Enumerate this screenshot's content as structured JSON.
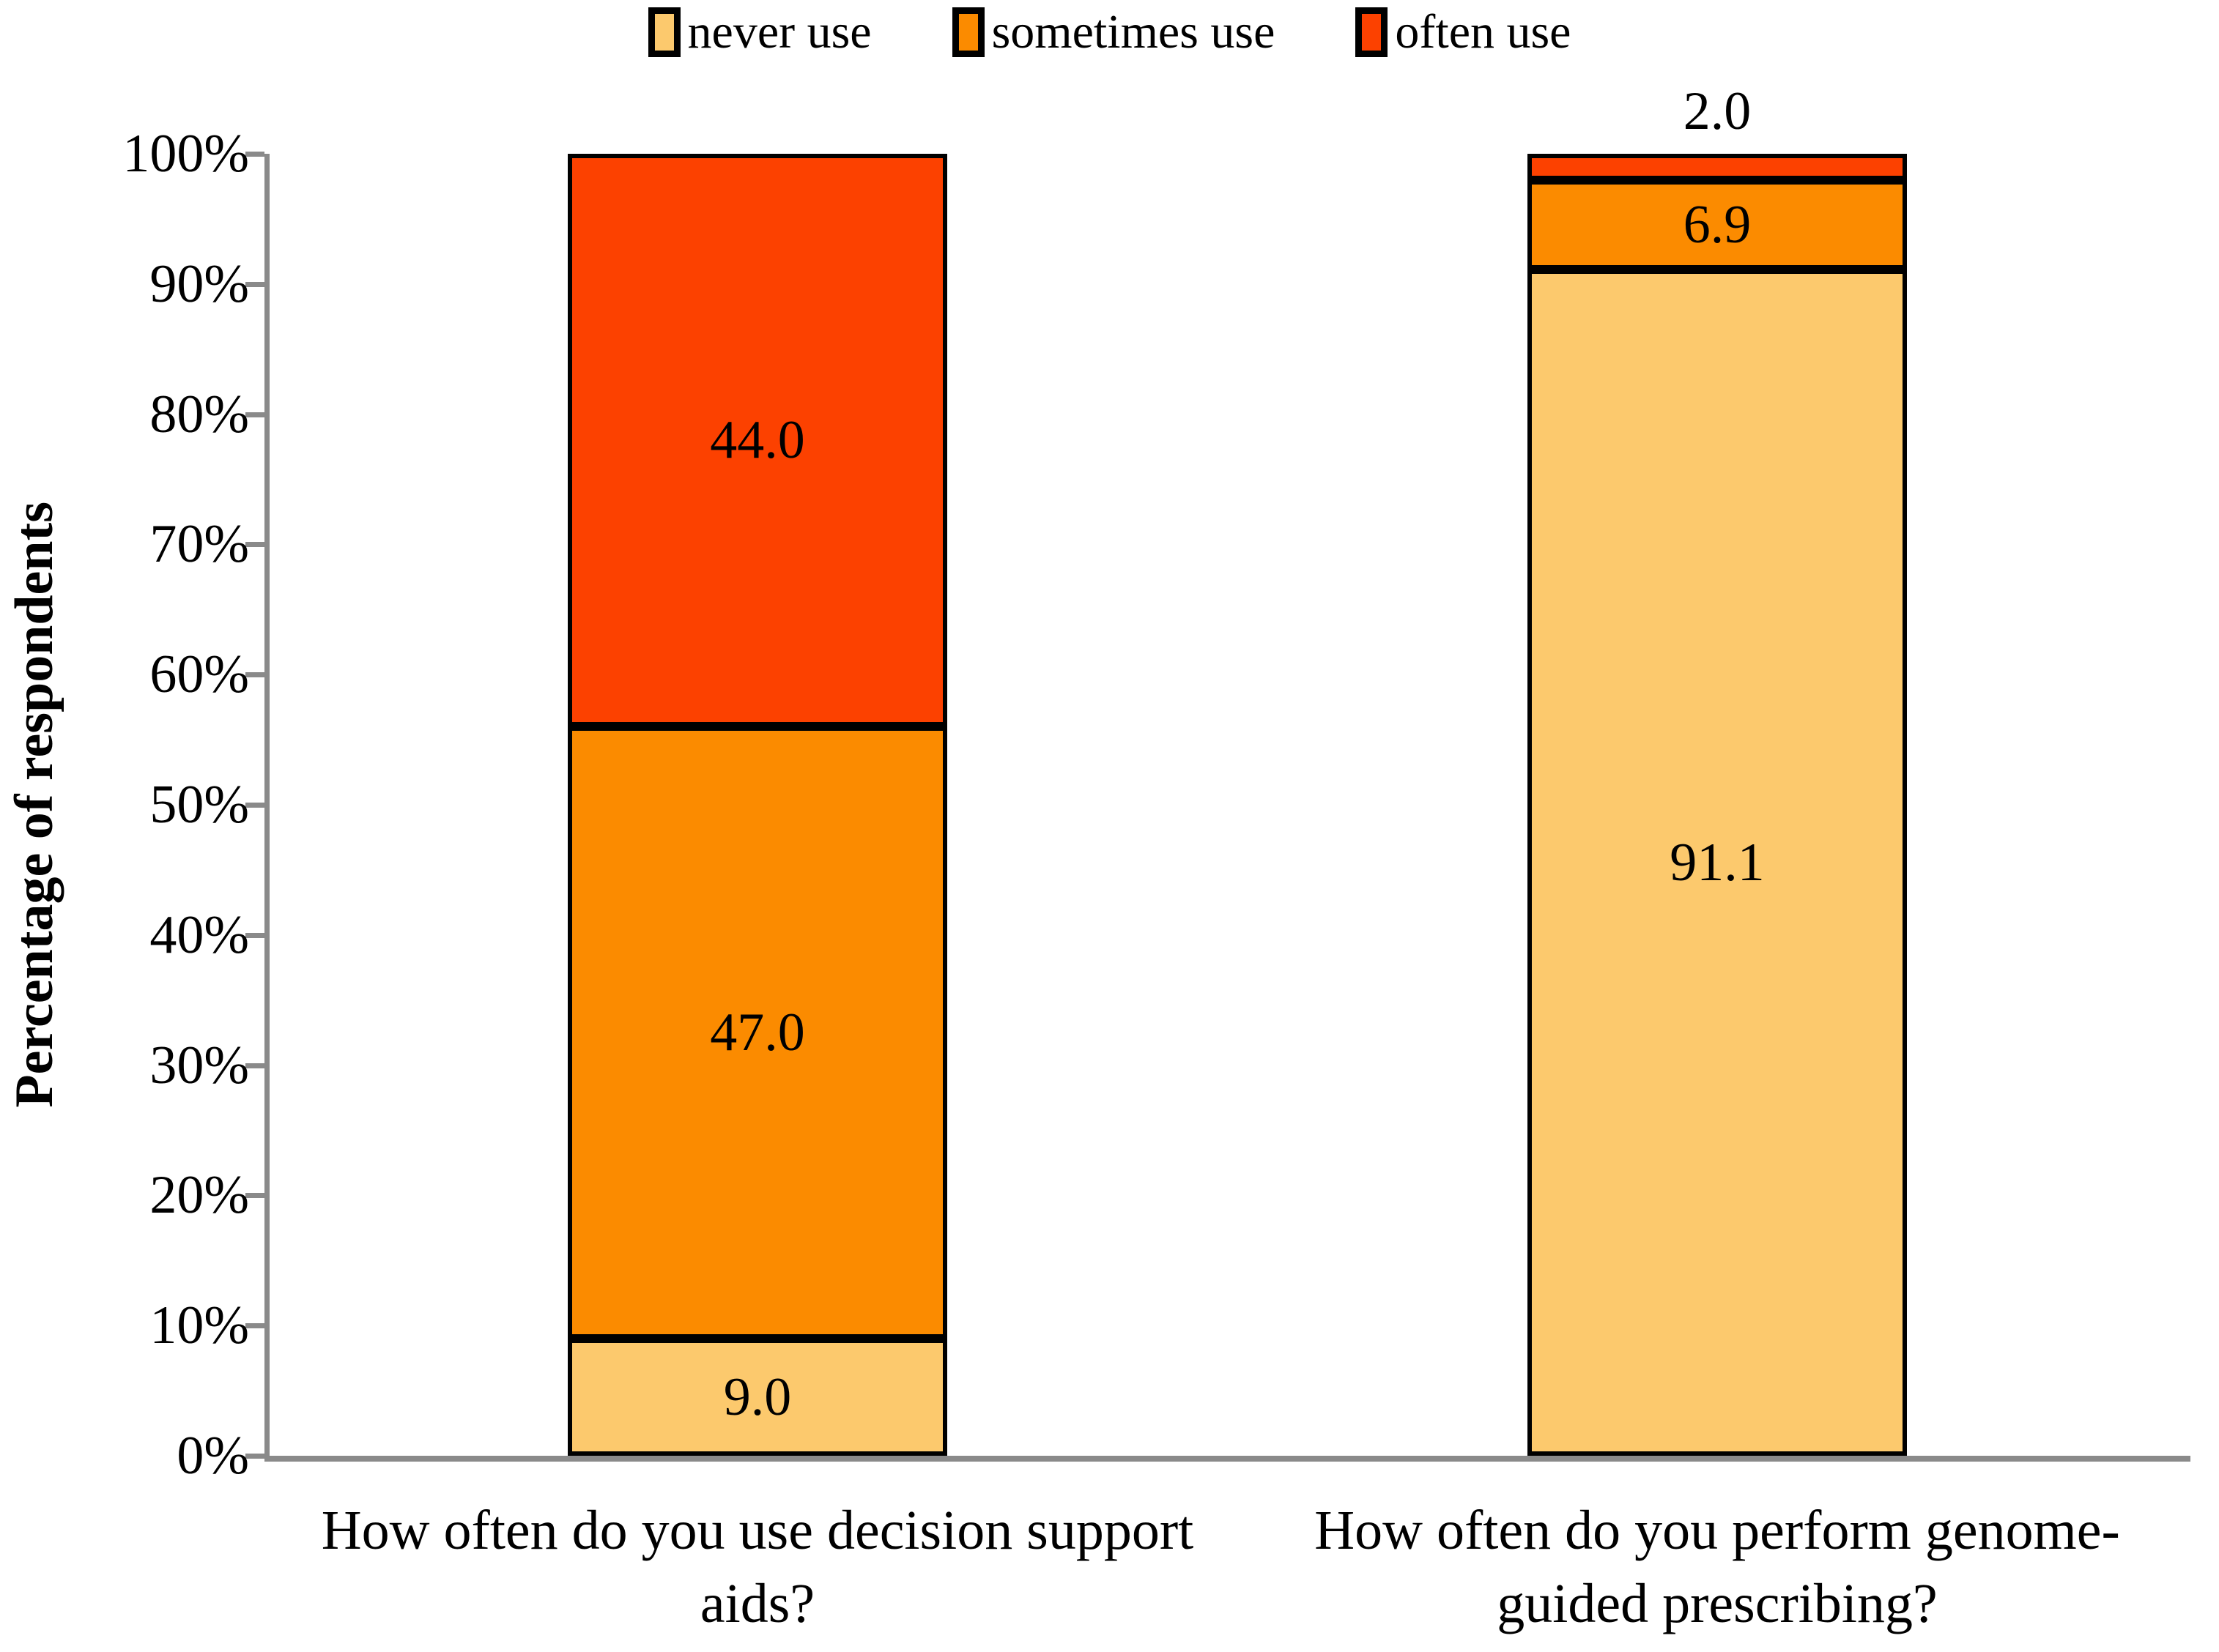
{
  "legend": {
    "items": [
      {
        "label": "never use",
        "color": "#FCC96D"
      },
      {
        "label": "sometimes use",
        "color": "#FB8B00"
      },
      {
        "label": "often use",
        "color": "#FC4100"
      }
    ]
  },
  "chart_data": {
    "type": "bar",
    "stacked": true,
    "title": "",
    "xlabel": "",
    "ylabel": "Percentage of respondents",
    "ylim": [
      0,
      100
    ],
    "ytick_step": 10,
    "ytick_suffix": "%",
    "grid": "off",
    "legend_position": "top",
    "categories": [
      "How often do you use decision support aids?",
      "How often do you perform genome-guided prescribing?"
    ],
    "category_lines": [
      [
        "How often do you use decision support",
        "aids?"
      ],
      [
        "How often do you perform genome-",
        "guided prescribing?"
      ]
    ],
    "series": [
      {
        "name": "never use",
        "color": "#FCC96D",
        "values": [
          9.0,
          91.1
        ],
        "labels": [
          "9.0",
          "91.1"
        ]
      },
      {
        "name": "sometimes use",
        "color": "#FB8B00",
        "values": [
          47.0,
          6.9
        ],
        "labels": [
          "47.0",
          "6.9"
        ]
      },
      {
        "name": "often use",
        "color": "#FC4100",
        "values": [
          44.0,
          2.0
        ],
        "labels": [
          "44.0",
          "2.0"
        ]
      }
    ]
  },
  "colors": {
    "axis": "#8A8A8A",
    "bar_border": "#000000",
    "text": "#000000"
  }
}
